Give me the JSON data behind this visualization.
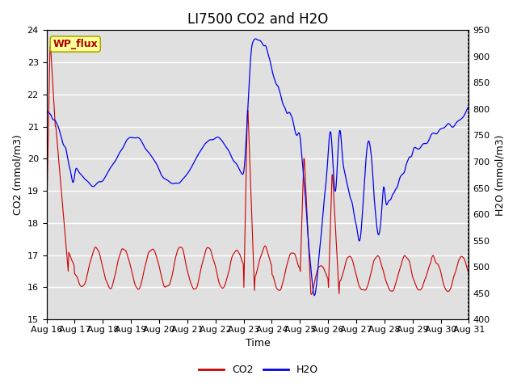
{
  "title": "LI7500 CO2 and H2O",
  "xlabel": "Time",
  "ylabel_left": "CO2 (mmol/m3)",
  "ylabel_right": "H2O (mmol/m3)",
  "co2_ylim": [
    15.0,
    24.0
  ],
  "h2o_ylim": [
    400,
    950
  ],
  "co2_color": "#CC0000",
  "h2o_color": "#0000EE",
  "background_color": "#FFFFFF",
  "plot_bg_color": "#E0E0E0",
  "grid_color": "#FFFFFF",
  "annotation_text": "WP_flux",
  "annotation_bg": "#FFFF99",
  "annotation_border": "#AAAA00",
  "x_tick_labels": [
    "Aug 16",
    "Aug 17",
    "Aug 18",
    "Aug 19",
    "Aug 20",
    "Aug 21",
    "Aug 22",
    "Aug 23",
    "Aug 24",
    "Aug 25",
    "Aug 26",
    "Aug 27",
    "Aug 28",
    "Aug 29",
    "Aug 30",
    "Aug 31"
  ],
  "legend_co2": "CO2",
  "legend_h2o": "H2O",
  "title_fontsize": 12,
  "label_fontsize": 9,
  "tick_fontsize": 8
}
